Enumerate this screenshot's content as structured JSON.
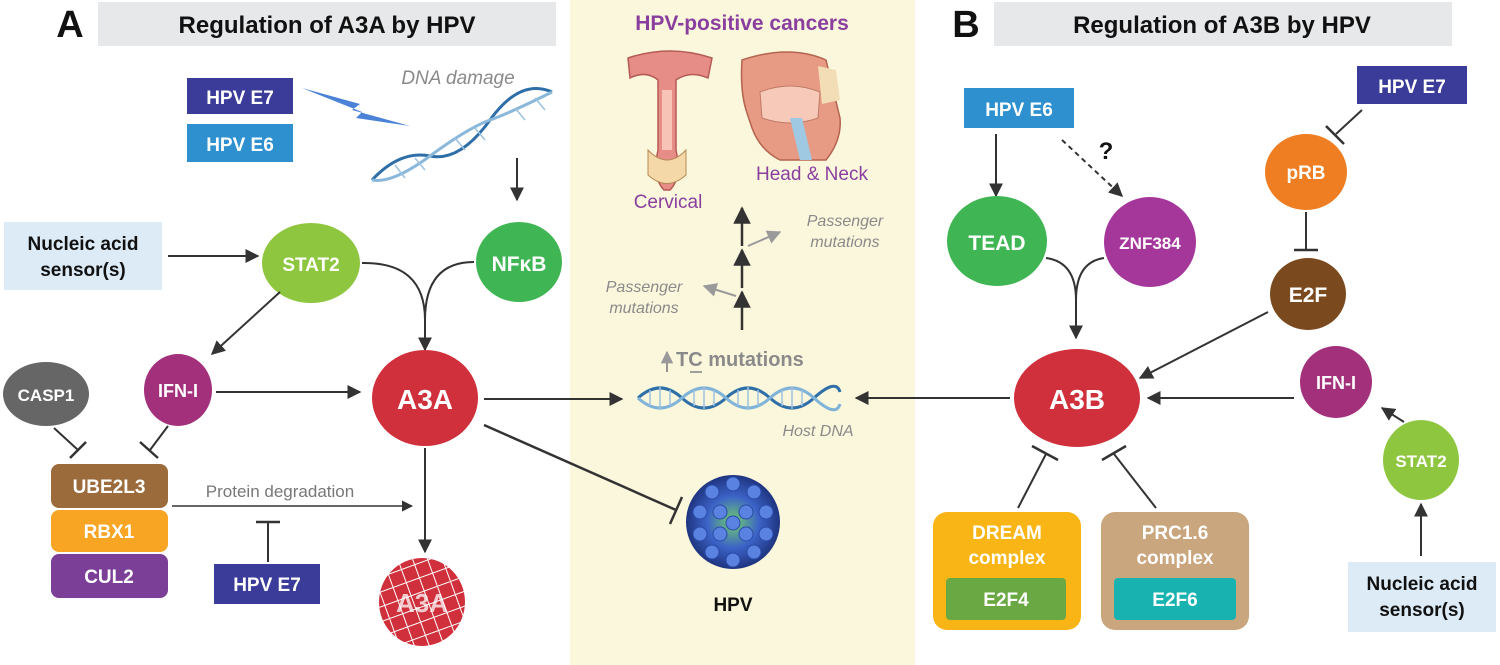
{
  "panel_a": {
    "letter": "A",
    "title": "Regulation of A3A by HPV",
    "hpv_e7_label": "HPV E7",
    "hpv_e6_label": "HPV E6",
    "dna_damage_label": "DNA damage",
    "sensor_line1": "Nucleic acid",
    "sensor_line2": "sensor(s)",
    "stat2_label": "STAT2",
    "nfkb_label": "NFκB",
    "ifn_label": "IFN-I",
    "casp1_label": "CASP1",
    "a3a_label": "A3A",
    "a3a_degraded_label": "A3A",
    "ube2l3_label": "UBE2L3",
    "rbx1_label": "RBX1",
    "cul2_label": "CUL2",
    "protein_degradation_label": "Protein degradation",
    "hpv_e7_bottom_label": "HPV E7"
  },
  "center": {
    "title": "HPV-positive cancers",
    "cervical_label": "Cervical",
    "head_neck_label": "Head & Neck",
    "passenger_upper_line1": "Passenger",
    "passenger_upper_line2": "mutations",
    "passenger_lower_line1": "Passenger",
    "passenger_lower_line2": "mutations",
    "tc_mutations_label": "TC mutations",
    "host_dna_label": "Host DNA",
    "hpv_label": "HPV"
  },
  "panel_b": {
    "letter": "B",
    "title": "Regulation of A3B by HPV",
    "hpv_e6_label": "HPV E6",
    "hpv_e7_label": "HPV E7",
    "question_mark": "?",
    "tead_label": "TEAD",
    "znf384_label": "ZNF384",
    "prb_label": "pRB",
    "e2f_label": "E2F",
    "a3b_label": "A3B",
    "ifn_label": "IFN-I",
    "stat2_label": "STAT2",
    "sensor_line1": "Nucleic acid",
    "sensor_line2": "sensor(s)",
    "dream_line1": "DREAM",
    "dream_line2": "complex",
    "e2f4_label": "E2F4",
    "prc_line1": "PRC1.6",
    "prc_line2": "complex",
    "e2f6_label": "E2F6"
  },
  "colors": {
    "hpv_e7_navy": "#3b3b9a",
    "hpv_e6_blue": "#2e90cf",
    "stat2_green": "#8fc640",
    "nfkb_green": "#3fb554",
    "ifn_magenta": "#a3307a",
    "casp1_gray": "#666666",
    "a3a_red": "#d0303b",
    "ube2l3_brown": "#9b6b3c",
    "rbx1_orange": "#f7a523",
    "cul2_purple": "#7b3f97",
    "sensor_box": "#dcebf6",
    "title_bar": "#e7e8ea",
    "center_panel": "#fbf7dd",
    "center_title_purple": "#8a3f9e",
    "tead_green": "#3fb554",
    "znf384_purple": "#a5379b",
    "prb_orange": "#ef7d22",
    "e2f_brown": "#7a4a1e",
    "dream_yellow": "#f9b515",
    "e2f4_green": "#6aa844",
    "prc_tan": "#c9a67e",
    "e2f6_teal": "#18b3b1"
  }
}
